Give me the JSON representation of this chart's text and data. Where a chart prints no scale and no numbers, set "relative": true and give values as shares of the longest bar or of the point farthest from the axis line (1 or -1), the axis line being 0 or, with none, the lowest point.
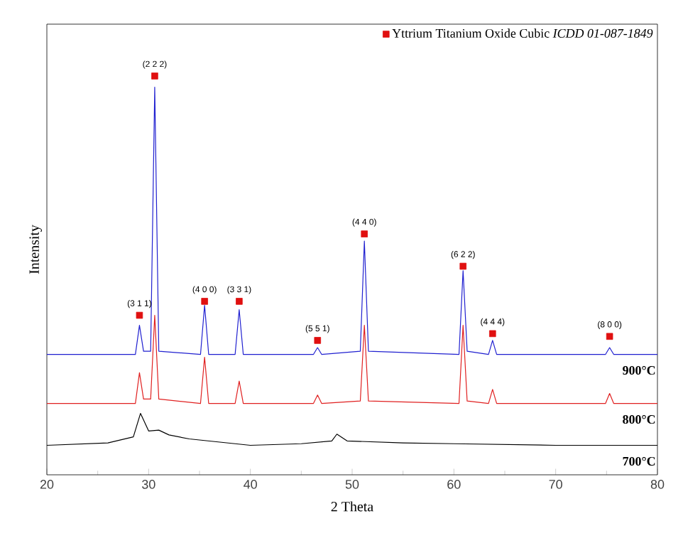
{
  "chart_data": {
    "type": "line",
    "relative": true,
    "xlabel": "2 Theta",
    "ylabel": "Intensity",
    "xlim": [
      20,
      80
    ],
    "xticks": [
      20,
      30,
      40,
      50,
      60,
      70,
      80
    ],
    "legend": "top right",
    "line_style": "solid",
    "marker": "none",
    "series": [
      {
        "name": "900°C",
        "color": "#2020d0",
        "x": [
          20,
          28.7,
          29.1,
          29.5,
          30.2,
          30.6,
          31,
          35.1,
          35.5,
          35.9,
          38.5,
          38.9,
          39.3,
          46.2,
          46.6,
          47,
          50.8,
          51.2,
          51.6,
          60.5,
          60.9,
          61.3,
          63.4,
          63.8,
          64.2,
          74.9,
          75.3,
          75.7,
          80
        ],
        "values": [
          0.302,
          0.302,
          0.375,
          0.31,
          0.31,
          0.972,
          0.31,
          0.302,
          0.425,
          0.302,
          0.302,
          0.414,
          0.302,
          0.302,
          0.319,
          0.302,
          0.31,
          0.586,
          0.31,
          0.302,
          0.512,
          0.31,
          0.302,
          0.337,
          0.302,
          0.302,
          0.319,
          0.302,
          0.302
        ]
      },
      {
        "name": "800°C",
        "color": "#e02020",
        "x": [
          20,
          28.7,
          29.1,
          29.5,
          30.2,
          30.6,
          31,
          35.1,
          35.5,
          35.9,
          38.5,
          38.9,
          39.3,
          46.2,
          46.6,
          47,
          50.8,
          51.2,
          51.6,
          60.5,
          60.9,
          61.3,
          63.4,
          63.8,
          64.2,
          74.9,
          75.3,
          75.7,
          80
        ],
        "values": [
          0.179,
          0.179,
          0.256,
          0.19,
          0.19,
          0.4,
          0.19,
          0.179,
          0.295,
          0.179,
          0.179,
          0.235,
          0.179,
          0.179,
          0.2,
          0.179,
          0.185,
          0.375,
          0.185,
          0.179,
          0.375,
          0.185,
          0.179,
          0.214,
          0.179,
          0.179,
          0.204,
          0.179,
          0.179
        ]
      },
      {
        "name": "700°C",
        "color": "#000000",
        "x": [
          20,
          26,
          28.5,
          29.2,
          30,
          31,
          32,
          34,
          40,
          45,
          48,
          48.5,
          49.5,
          55,
          60,
          70,
          80
        ],
        "values": [
          0.074,
          0.08,
          0.095,
          0.154,
          0.11,
          0.112,
          0.1,
          0.09,
          0.074,
          0.078,
          0.085,
          0.102,
          0.085,
          0.08,
          0.078,
          0.074,
          0.074
        ]
      },
      {
        "name": "Yttrium Titanium Oxide Cubic *ICDD 01-087-1849*",
        "type": "scatter",
        "marker": "square",
        "color": "#e01010",
        "x": [
          29.1,
          30.6,
          35.5,
          38.9,
          46.6,
          51.2,
          60.9,
          63.8,
          75.3
        ],
        "values": [
          0.4,
          1.0,
          0.435,
          0.435,
          0.337,
          0.604,
          0.523,
          0.354,
          0.347
        ]
      }
    ],
    "annotations": [
      {
        "text": "(3 1 1)",
        "x": 29.1,
        "y": 0.4
      },
      {
        "text": "(2 2 2)",
        "x": 30.6,
        "y": 1.0
      },
      {
        "text": "(4 0 0)",
        "x": 35.5,
        "y": 0.435
      },
      {
        "text": "(3 3 1)",
        "x": 38.9,
        "y": 0.435
      },
      {
        "text": "(5 5 1)",
        "x": 46.6,
        "y": 0.337
      },
      {
        "text": "(4 4 0)",
        "x": 51.2,
        "y": 0.604
      },
      {
        "text": "(6 2 2)",
        "x": 60.9,
        "y": 0.523
      },
      {
        "text": "(4 4 4)",
        "x": 63.8,
        "y": 0.354
      },
      {
        "text": "(8 0 0)",
        "x": 75.3,
        "y": 0.347
      }
    ]
  }
}
